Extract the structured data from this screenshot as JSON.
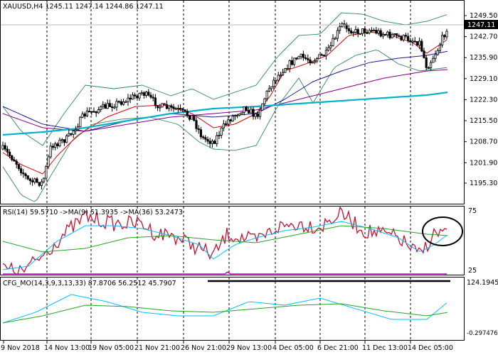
{
  "main_chart": {
    "header": "XAUUSD,H4  1245.11 1247.14 1244.86 1247.11",
    "current_price": "1247.11",
    "price_labels": [
      "1249.50",
      "1242.70",
      "1235.90",
      "1229.10",
      "1222.30",
      "1215.50",
      "1208.70",
      "1201.90",
      "1195.30"
    ],
    "price_min": 1195.3,
    "price_max": 1249.5
  },
  "rsi_panel": {
    "header": "RSI(14) 59.5710  ->MA(9) 51.3935  ->MA(36) 53.2473",
    "labels": [
      "75",
      "25"
    ]
  },
  "cfg_panel": {
    "header": "CFG_MO(14,3,9,3,13,33) 87.8706 56.2512 45.7907",
    "labels": [
      "124.1945",
      "-0.297476"
    ]
  },
  "time_axis": [
    "9 Nov 2018",
    "14 Nov 13:00",
    "19 Nov 05:00",
    "21 Nov 21:00",
    "26 Nov 21:00",
    "29 Nov 13:00",
    "4 Dec 05:00",
    "6 Dec 21:00",
    "11 Dec 13:00",
    "14 Dec 05:00"
  ],
  "colors": {
    "candles": "#000000",
    "bollinger": "#2e8b57",
    "ma_red": "#e00000",
    "ma_navy": "#1a1a8c",
    "ma_purple": "#800080",
    "ma_teal": "#00b3c8",
    "rsi_line": "#c8102e",
    "rsi_ma_fast": "#00bfff",
    "rsi_ma_slow": "#2ca02c",
    "cfg_main": "#e000e0",
    "cfg_sig1": "#00bfff",
    "cfg_sig2": "#2ca02c"
  }
}
